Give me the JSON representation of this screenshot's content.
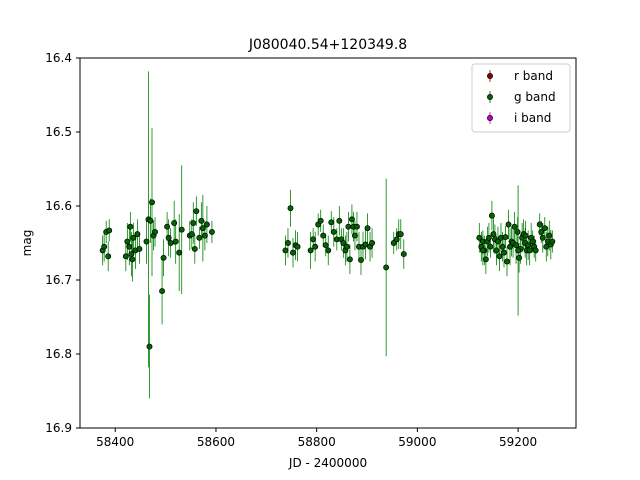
{
  "chart_data": {
    "type": "scatter",
    "title": "J080040.54+120349.8",
    "xlabel": "JD - 2400000",
    "ylabel": "mag",
    "xlim": [
      58330,
      59315
    ],
    "ylim": [
      16.9,
      16.4
    ],
    "y_inverted": true,
    "xticks": [
      58400,
      58600,
      58800,
      59000,
      59200
    ],
    "xtick_labels": [
      "58400",
      "58600",
      "58800",
      "59000",
      "59200"
    ],
    "yticks": [
      16.4,
      16.5,
      16.6,
      16.7,
      16.8,
      16.9
    ],
    "ytick_labels": [
      "16.4",
      "16.5",
      "16.6",
      "16.7",
      "16.8",
      "16.9"
    ],
    "grid": false,
    "legend_position": "top-right",
    "series": [
      {
        "name": "r band",
        "color": "#8b0000",
        "points": []
      },
      {
        "name": "i band",
        "color": "#bf00bf",
        "points": []
      },
      {
        "name": "g band",
        "color": "#006400",
        "points": [
          [
            58375,
            16.66,
            0.02
          ],
          [
            58378,
            16.655,
            0.02
          ],
          [
            58382,
            16.635,
            0.015
          ],
          [
            58386,
            16.668,
            0.02
          ],
          [
            58388,
            16.633,
            0.015
          ],
          [
            58421,
            16.668,
            0.02
          ],
          [
            58424,
            16.648,
            0.025
          ],
          [
            58428,
            16.655,
            0.025
          ],
          [
            58430,
            16.628,
            0.02
          ],
          [
            58432,
            16.665,
            0.03
          ],
          [
            58434,
            16.672,
            0.03
          ],
          [
            58436,
            16.643,
            0.02
          ],
          [
            58440,
            16.66,
            0.025
          ],
          [
            58444,
            16.638,
            0.02
          ],
          [
            58448,
            16.658,
            0.02
          ],
          [
            58462,
            16.648,
            0.03
          ],
          [
            58466,
            16.618,
            0.2
          ],
          [
            58468,
            16.79,
            0.07
          ],
          [
            58470,
            16.62,
            0.03
          ],
          [
            58473,
            16.595,
            0.1
          ],
          [
            58476,
            16.64,
            0.02
          ],
          [
            58479,
            16.635,
            0.02
          ],
          [
            58493,
            16.715,
            0.045
          ],
          [
            58496,
            16.67,
            0.025
          ],
          [
            58503,
            16.628,
            0.02
          ],
          [
            58506,
            16.643,
            0.025
          ],
          [
            58510,
            16.65,
            0.02
          ],
          [
            58517,
            16.623,
            0.03
          ],
          [
            58520,
            16.648,
            0.03
          ],
          [
            58527,
            16.663,
            0.052
          ],
          [
            58532,
            16.632,
            0.087
          ],
          [
            58548,
            16.64,
            0.02
          ],
          [
            58552,
            16.638,
            0.02
          ],
          [
            58555,
            16.623,
            0.028
          ],
          [
            58558,
            16.658,
            0.02
          ],
          [
            58561,
            16.607,
            0.02
          ],
          [
            58567,
            16.643,
            0.015
          ],
          [
            58571,
            16.62,
            0.025
          ],
          [
            58574,
            16.63,
            0.045
          ],
          [
            58578,
            16.64,
            0.02
          ],
          [
            58582,
            16.625,
            0.025
          ],
          [
            58592,
            16.635,
            0.015
          ],
          [
            58738,
            16.66,
            0.02
          ],
          [
            58743,
            16.65,
            0.02
          ],
          [
            58748,
            16.603,
            0.025
          ],
          [
            58753,
            16.663,
            0.02
          ],
          [
            58758,
            16.653,
            0.02
          ],
          [
            58762,
            16.655,
            0.02
          ],
          [
            58788,
            16.66,
            0.025
          ],
          [
            58793,
            16.645,
            0.015
          ],
          [
            58797,
            16.655,
            0.02
          ],
          [
            58803,
            16.625,
            0.015
          ],
          [
            58808,
            16.62,
            0.015
          ],
          [
            58813,
            16.64,
            0.015
          ],
          [
            58818,
            16.653,
            0.015
          ],
          [
            58823,
            16.66,
            0.02
          ],
          [
            58829,
            16.622,
            0.015
          ],
          [
            58834,
            16.635,
            0.02
          ],
          [
            58840,
            16.645,
            0.015
          ],
          [
            58845,
            16.62,
            0.02
          ],
          [
            58849,
            16.645,
            0.015
          ],
          [
            58853,
            16.65,
            0.02
          ],
          [
            58857,
            16.66,
            0.02
          ],
          [
            58860,
            16.655,
            0.02
          ],
          [
            58863,
            16.628,
            0.02
          ],
          [
            58866,
            16.672,
            0.02
          ],
          [
            58870,
            16.618,
            0.02
          ],
          [
            58873,
            16.628,
            0.02
          ],
          [
            58876,
            16.64,
            0.02
          ],
          [
            58880,
            16.628,
            0.02
          ],
          [
            58884,
            16.655,
            0.02
          ],
          [
            58888,
            16.673,
            0.02
          ],
          [
            58892,
            16.655,
            0.02
          ],
          [
            58897,
            16.652,
            0.02
          ],
          [
            58901,
            16.63,
            0.02
          ],
          [
            58906,
            16.655,
            0.02
          ],
          [
            58910,
            16.65,
            0.02
          ],
          [
            58938,
            16.683,
            0.12
          ],
          [
            58953,
            16.65,
            0.015
          ],
          [
            58959,
            16.645,
            0.015
          ],
          [
            58963,
            16.638,
            0.02
          ],
          [
            58967,
            16.638,
            0.02
          ],
          [
            58973,
            16.665,
            0.02
          ],
          [
            59123,
            16.643,
            0.02
          ],
          [
            59127,
            16.655,
            0.02
          ],
          [
            59130,
            16.648,
            0.015
          ],
          [
            59133,
            16.66,
            0.02
          ],
          [
            59136,
            16.672,
            0.02
          ],
          [
            59139,
            16.648,
            0.02
          ],
          [
            59142,
            16.643,
            0.02
          ],
          [
            59145,
            16.655,
            0.015
          ],
          [
            59148,
            16.613,
            0.02
          ],
          [
            59151,
            16.638,
            0.025
          ],
          [
            59154,
            16.645,
            0.02
          ],
          [
            59157,
            16.66,
            0.02
          ],
          [
            59160,
            16.648,
            0.02
          ],
          [
            59163,
            16.668,
            0.02
          ],
          [
            59166,
            16.643,
            0.02
          ],
          [
            59169,
            16.655,
            0.02
          ],
          [
            59172,
            16.663,
            0.02
          ],
          [
            59175,
            16.642,
            0.015
          ],
          [
            59178,
            16.675,
            0.02
          ],
          [
            59181,
            16.625,
            0.02
          ],
          [
            59184,
            16.655,
            0.025
          ],
          [
            59187,
            16.648,
            0.02
          ],
          [
            59190,
            16.65,
            0.02
          ],
          [
            59193,
            16.628,
            0.02
          ],
          [
            59196,
            16.653,
            0.025
          ],
          [
            59199,
            16.635,
            0.02
          ],
          [
            59202,
            16.67,
            0.02
          ],
          [
            59205,
            16.658,
            0.02
          ],
          [
            59208,
            16.643,
            0.02
          ],
          [
            59211,
            16.638,
            0.02
          ],
          [
            59214,
            16.65,
            0.02
          ],
          [
            59217,
            16.66,
            0.02
          ],
          [
            59220,
            16.653,
            0.02
          ],
          [
            59223,
            16.66,
            0.02
          ],
          [
            59226,
            16.643,
            0.02
          ],
          [
            59229,
            16.648,
            0.015
          ],
          [
            59232,
            16.655,
            0.015
          ],
          [
            59235,
            16.66,
            0.015
          ],
          [
            59243,
            16.625,
            0.015
          ],
          [
            59246,
            16.635,
            0.015
          ],
          [
            59249,
            16.643,
            0.02
          ],
          [
            59253,
            16.63,
            0.015
          ],
          [
            59256,
            16.655,
            0.02
          ],
          [
            59259,
            16.648,
            0.02
          ],
          [
            59262,
            16.64,
            0.02
          ],
          [
            59265,
            16.652,
            0.02
          ],
          [
            59268,
            16.648,
            0.015
          ],
          [
            59130,
            16.66,
            0.02
          ],
          [
            59200,
            16.66,
            0.088
          ],
          [
            59215,
            16.64,
            0.02
          ]
        ]
      }
    ],
    "legend": [
      {
        "name": "r band",
        "color": "#8b0000"
      },
      {
        "name": "g band",
        "color": "#006400"
      },
      {
        "name": "i band",
        "color": "#bf00bf"
      }
    ]
  }
}
